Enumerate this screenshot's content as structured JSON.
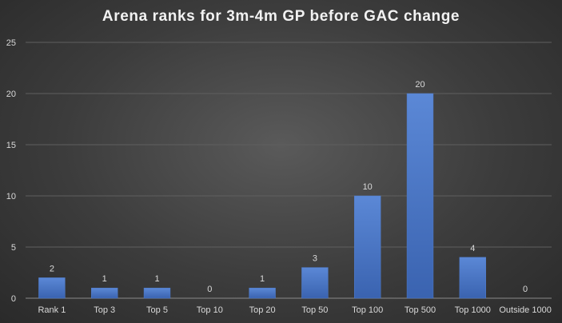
{
  "chart_data": {
    "type": "bar",
    "title": "Arena ranks for 3m-4m GP before GAC change",
    "categories": [
      "Rank 1",
      "Top 3",
      "Top 5",
      "Top 10",
      "Top 20",
      "Top 50",
      "Top 100",
      "Top 500",
      "Top 1000",
      "Outside 1000"
    ],
    "values": [
      2,
      1,
      1,
      0,
      1,
      3,
      10,
      20,
      4,
      0
    ],
    "ylim": [
      0,
      25
    ],
    "yticks": [
      0,
      5,
      10,
      15,
      20,
      25
    ],
    "grid": true,
    "legend": "none",
    "bar_color": "#4472c4"
  }
}
